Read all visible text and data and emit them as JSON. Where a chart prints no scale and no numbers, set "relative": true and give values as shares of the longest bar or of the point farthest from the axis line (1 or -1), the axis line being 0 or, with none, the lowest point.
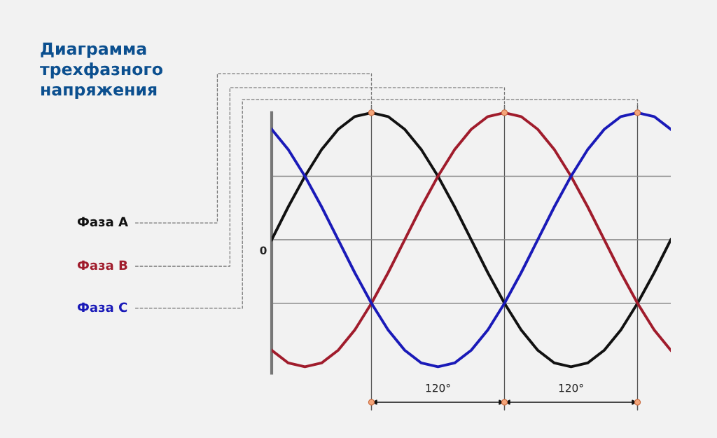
{
  "chart_data": {
    "type": "line",
    "title": "Диаграмма\nтрехфазного\nнапряжения",
    "relative": true,
    "grid": true,
    "marker": "none",
    "line_style": "solid",
    "categories": [
      null,
      null,
      null,
      null,
      null,
      null,
      null,
      null,
      null,
      null,
      null,
      null,
      null,
      null,
      null,
      null,
      null,
      null,
      null,
      null,
      null,
      null,
      null,
      null,
      null
    ],
    "series": [
      {
        "name": "Фаза A",
        "color": "#111111",
        "values": [
          0,
          0.26,
          0.5,
          0.71,
          0.87,
          0.97,
          1,
          0.97,
          0.87,
          0.71,
          0.5,
          0.26,
          0,
          -0.26,
          -0.5,
          -0.71,
          -0.87,
          -0.97,
          -1,
          -0.97,
          -0.87,
          -0.71,
          -0.5,
          -0.26,
          0
        ]
      },
      {
        "name": "Фаза B",
        "color": "#a01c2c",
        "values": [
          -0.87,
          -0.97,
          -1,
          -0.97,
          -0.87,
          -0.71,
          -0.5,
          -0.26,
          0,
          0.26,
          0.5,
          0.71,
          0.87,
          0.97,
          1,
          0.97,
          0.87,
          0.71,
          0.5,
          0.26,
          0,
          -0.26,
          -0.5,
          -0.71,
          -0.87
        ]
      },
      {
        "name": "Фаза C",
        "color": "#1a1ab8",
        "values": [
          0.87,
          0.71,
          0.5,
          0.26,
          0,
          -0.26,
          -0.5,
          -0.71,
          -0.87,
          -0.97,
          -1,
          -0.97,
          -0.87,
          -0.71,
          -0.5,
          -0.26,
          0,
          0.26,
          0.5,
          0.71,
          0.87,
          0.97,
          1,
          0.97,
          0.87
        ]
      }
    ],
    "ref_lines": [
      {
        "axis": "y",
        "value": 0,
        "label": "0",
        "color": "#888888"
      },
      {
        "axis": "y",
        "value": 0.5,
        "color": "#888888"
      },
      {
        "axis": "y",
        "value": -0.5,
        "color": "#888888"
      }
    ],
    "annotations": [
      "120°",
      "120°"
    ]
  }
}
